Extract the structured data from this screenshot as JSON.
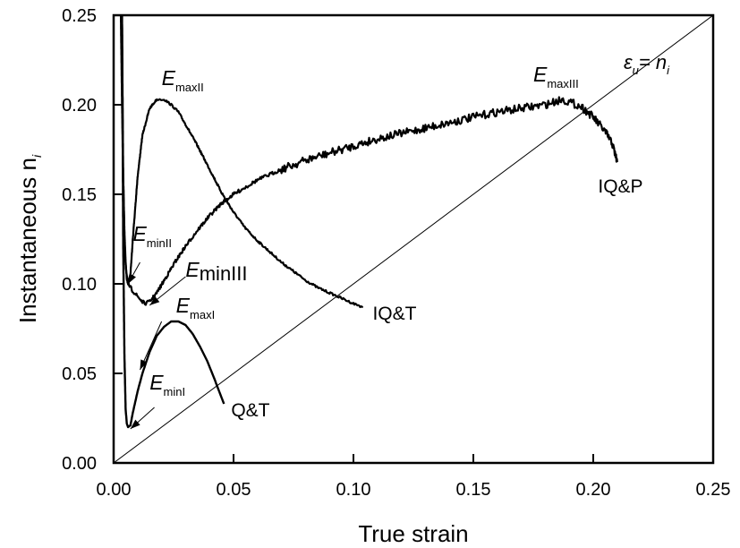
{
  "chart_data": {
    "type": "line",
    "title": "",
    "xlabel": "True strain",
    "ylabel": "Instantaneous n",
    "ylabel_subscript": "i",
    "xlim": [
      0.0,
      0.25
    ],
    "ylim": [
      0.0,
      0.25
    ],
    "xticks": [
      "0.00",
      "0.05",
      "0.10",
      "0.15",
      "0.20",
      "0.25"
    ],
    "yticks": [
      "0.00",
      "0.05",
      "0.10",
      "0.15",
      "0.20",
      "0.25"
    ],
    "grid": false,
    "reference_line": {
      "label_main": "ε",
      "label_sub": "u",
      "label_rest": "= n",
      "label_rest_sub": "i",
      "x": [
        0.0,
        0.25
      ],
      "y": [
        0.0,
        0.25
      ]
    },
    "series": [
      {
        "name": "Q&T",
        "label": "Q&T",
        "noisy": false,
        "x": [
          0.0035,
          0.004,
          0.0045,
          0.005,
          0.0055,
          0.006,
          0.007,
          0.008,
          0.01,
          0.012,
          0.015,
          0.018,
          0.021,
          0.024,
          0.027,
          0.03,
          0.033,
          0.036,
          0.039,
          0.042,
          0.044,
          0.046
        ],
        "y": [
          0.25,
          0.12,
          0.06,
          0.03,
          0.022,
          0.02,
          0.021,
          0.028,
          0.04,
          0.05,
          0.062,
          0.071,
          0.076,
          0.079,
          0.079,
          0.077,
          0.072,
          0.065,
          0.057,
          0.047,
          0.04,
          0.033
        ]
      },
      {
        "name": "IQ&T",
        "label": "IQ&T",
        "noisy": true,
        "x": [
          0.003,
          0.0035,
          0.004,
          0.0045,
          0.005,
          0.0055,
          0.006,
          0.007,
          0.008,
          0.01,
          0.012,
          0.015,
          0.018,
          0.021,
          0.024,
          0.027,
          0.03,
          0.035,
          0.04,
          0.045,
          0.05,
          0.055,
          0.06,
          0.065,
          0.07,
          0.075,
          0.08,
          0.085,
          0.09,
          0.095,
          0.1,
          0.104
        ],
        "y": [
          0.25,
          0.2,
          0.16,
          0.13,
          0.112,
          0.103,
          0.1,
          0.105,
          0.125,
          0.16,
          0.183,
          0.198,
          0.203,
          0.203,
          0.2,
          0.196,
          0.189,
          0.177,
          0.164,
          0.151,
          0.14,
          0.131,
          0.124,
          0.118,
          0.112,
          0.107,
          0.102,
          0.098,
          0.095,
          0.092,
          0.089,
          0.087
        ]
      },
      {
        "name": "IQ&P",
        "label": "IQ&P",
        "noisy": true,
        "x": [
          0.0035,
          0.004,
          0.0045,
          0.005,
          0.006,
          0.008,
          0.01,
          0.012,
          0.013,
          0.015,
          0.018,
          0.022,
          0.026,
          0.03,
          0.035,
          0.04,
          0.045,
          0.05,
          0.06,
          0.07,
          0.08,
          0.09,
          0.1,
          0.11,
          0.12,
          0.13,
          0.14,
          0.15,
          0.16,
          0.17,
          0.18,
          0.187,
          0.195,
          0.2,
          0.205,
          0.208,
          0.21
        ],
        "y": [
          0.25,
          0.16,
          0.125,
          0.11,
          0.1,
          0.096,
          0.093,
          0.09,
          0.089,
          0.09,
          0.095,
          0.104,
          0.113,
          0.121,
          0.13,
          0.138,
          0.145,
          0.15,
          0.158,
          0.164,
          0.169,
          0.173,
          0.177,
          0.181,
          0.184,
          0.187,
          0.19,
          0.193,
          0.196,
          0.198,
          0.2,
          0.203,
          0.199,
          0.193,
          0.185,
          0.178,
          0.168
        ]
      }
    ],
    "annotations": [
      {
        "main": "E",
        "sub": "maxII",
        "x": 0.02,
        "y": 0.211,
        "style": "small-sub"
      },
      {
        "main": "E",
        "sub": "minII",
        "x": 0.008,
        "y": 0.124,
        "style": "small-sub"
      },
      {
        "main": "E",
        "sub": "minIII",
        "x": 0.03,
        "y": 0.104,
        "style": "large-sub"
      },
      {
        "main": "E",
        "sub": "maxI",
        "x": 0.026,
        "y": 0.084,
        "style": "small-sub"
      },
      {
        "main": "E",
        "sub": "minI",
        "x": 0.015,
        "y": 0.041,
        "style": "small-sub"
      },
      {
        "main": "E",
        "sub": "maxIII",
        "x": 0.175,
        "y": 0.213,
        "style": "small-sub"
      }
    ],
    "arrows": [
      {
        "name": "arrow-eminII",
        "from": [
          0.011,
          0.112
        ],
        "to": [
          0.006,
          0.1
        ]
      },
      {
        "name": "arrow-eminIII",
        "from": [
          0.03,
          0.104
        ],
        "to": [
          0.015,
          0.088
        ]
      },
      {
        "name": "arrow-emaxI",
        "from": [
          0.02,
          0.079
        ],
        "to": [
          0.011,
          0.052
        ]
      },
      {
        "name": "arrow-eminI",
        "from": [
          0.017,
          0.031
        ],
        "to": [
          0.007,
          0.019
        ]
      }
    ],
    "series_labels": [
      {
        "text": "Q&T",
        "x": 0.049,
        "y": 0.03
      },
      {
        "text": "IQ&T",
        "x": 0.108,
        "y": 0.084
      },
      {
        "text": "IQ&P",
        "x": 0.202,
        "y": 0.155
      }
    ],
    "colors": {
      "line": "#000000",
      "background": "#ffffff"
    }
  }
}
